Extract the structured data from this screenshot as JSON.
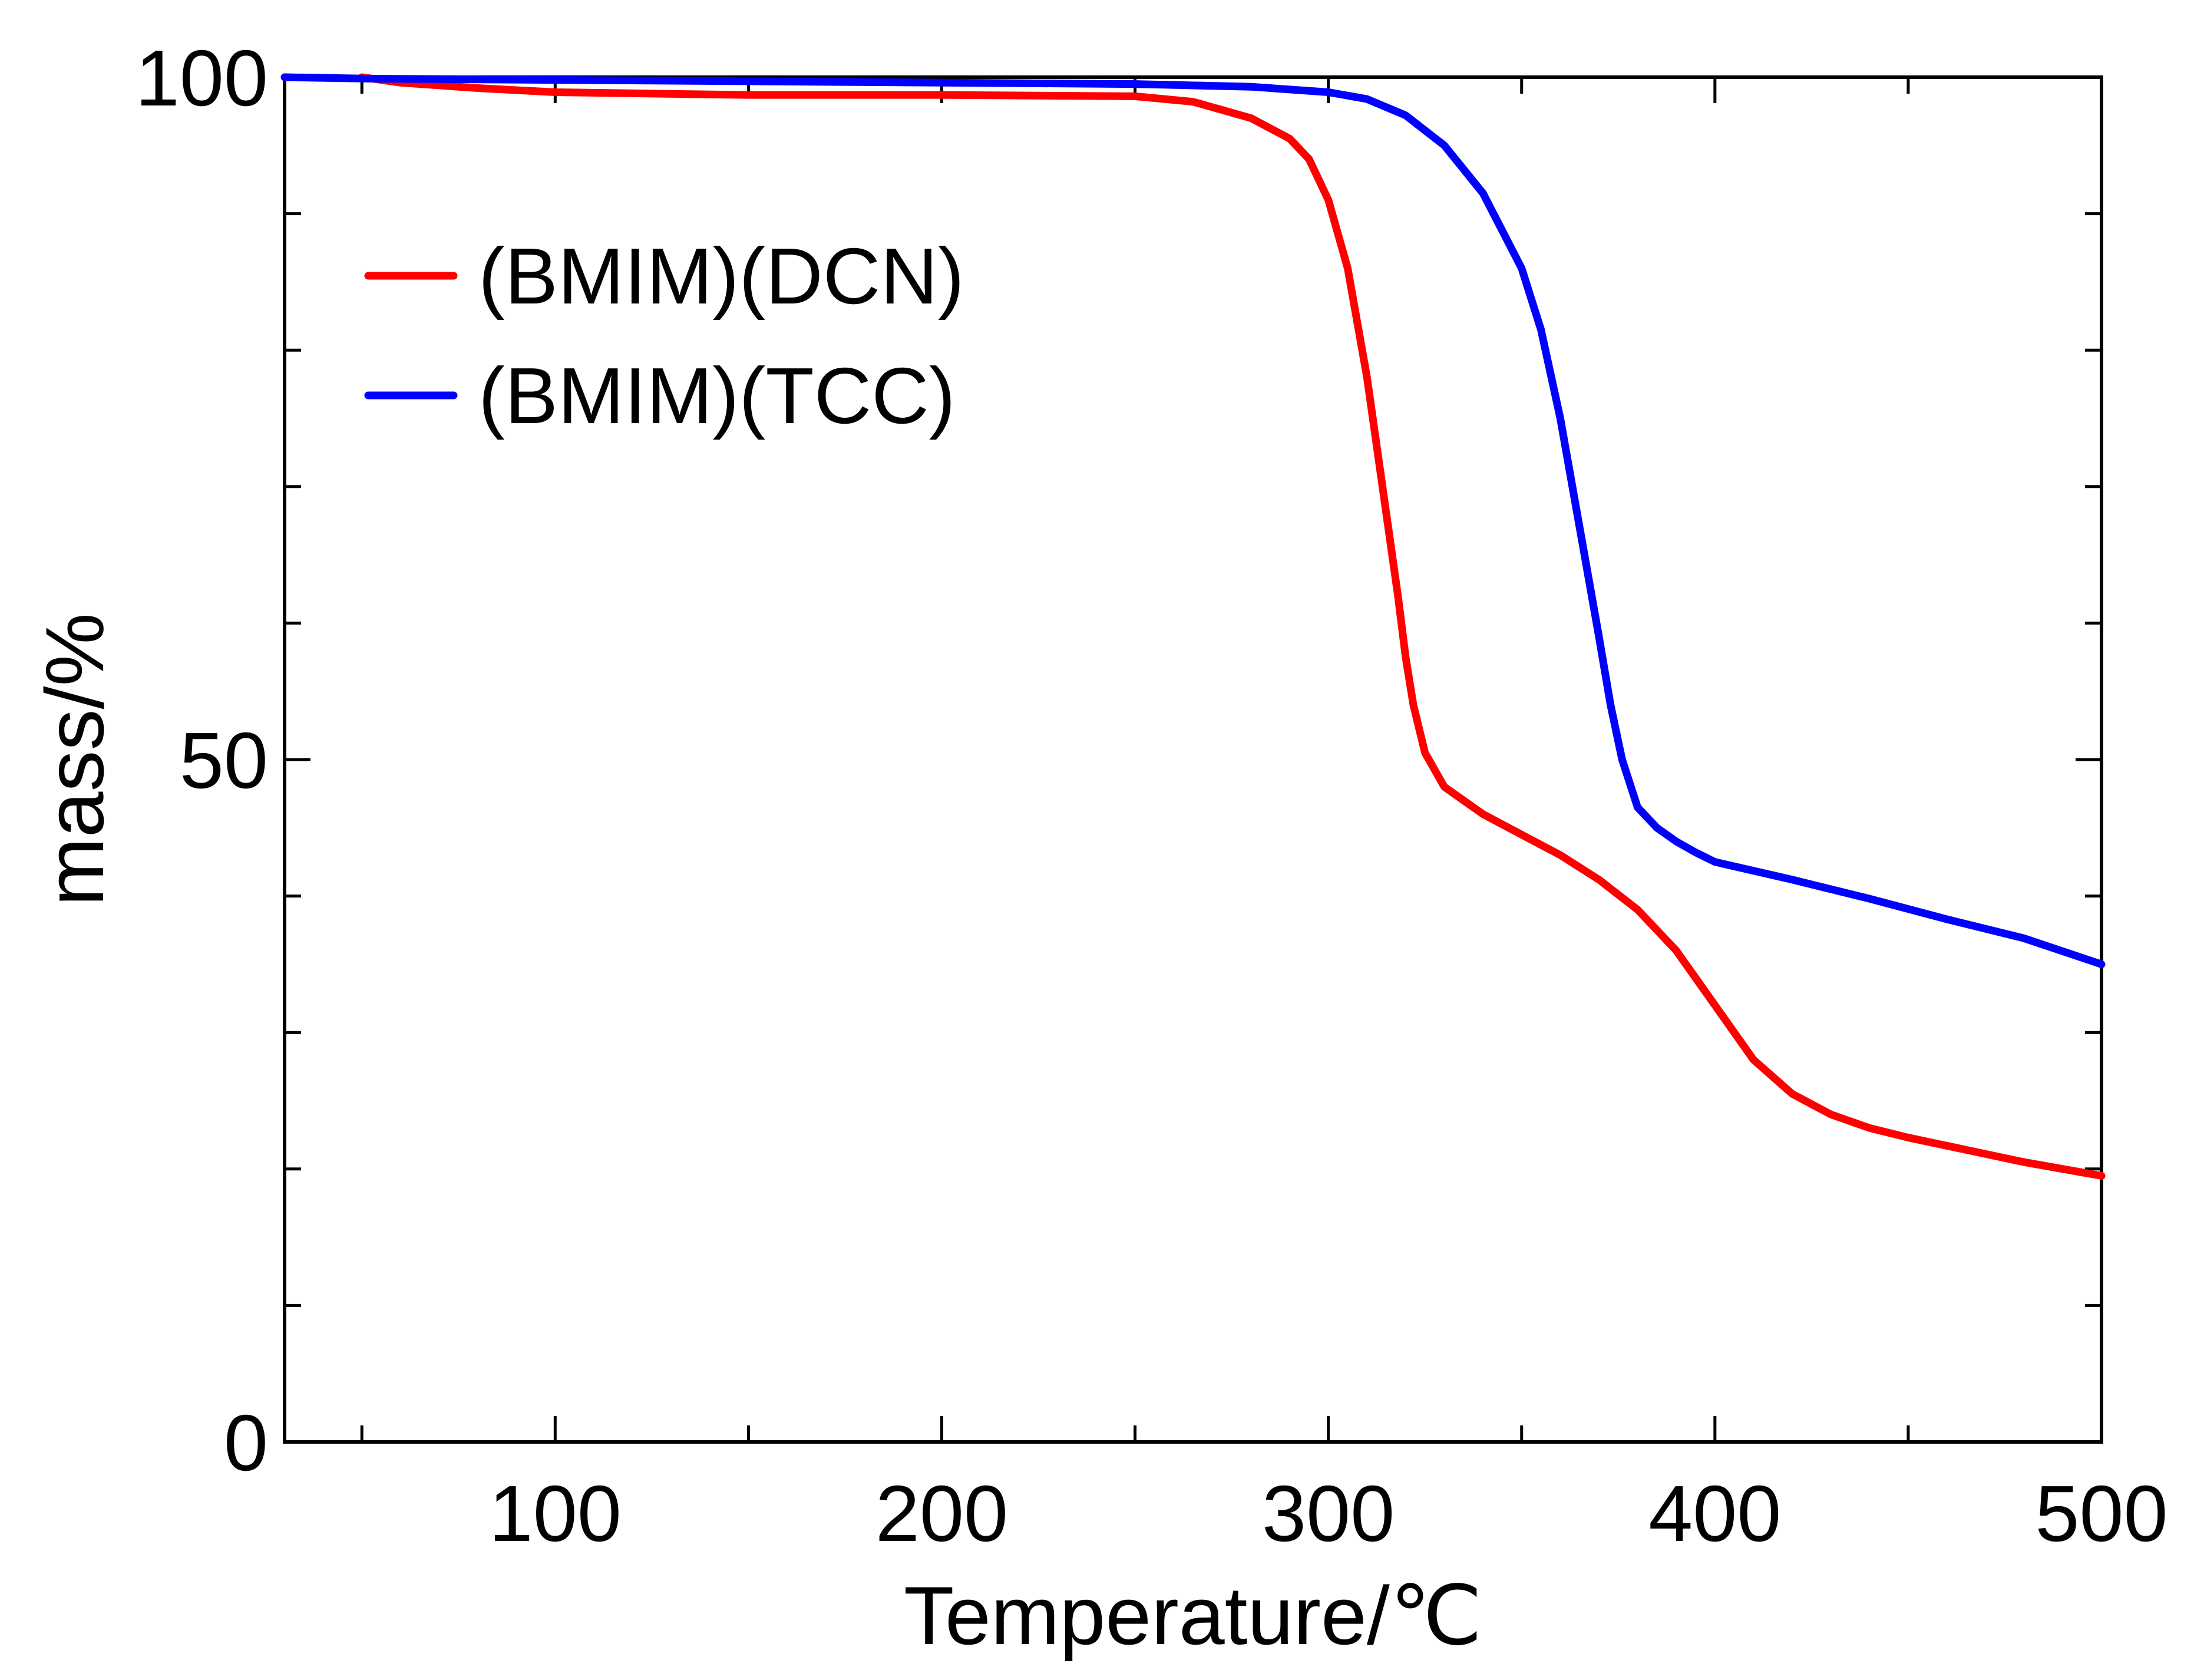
{
  "chart_data": {
    "type": "line",
    "title": "",
    "xlabel": "Temperature/℃",
    "ylabel": "mass/%",
    "xlim": [
      30,
      500
    ],
    "ylim": [
      0,
      100
    ],
    "x_ticks": [
      100,
      200,
      300,
      400,
      500
    ],
    "x_minor_ticks": [
      50,
      150,
      250,
      350,
      450
    ],
    "y_ticks": [
      0,
      50,
      100
    ],
    "y_minor_ticks": [
      10,
      20,
      30,
      40,
      60,
      70,
      80,
      90
    ],
    "grid": false,
    "legend_position": "top-left",
    "series": [
      {
        "name": "(BMIM)(DCN)",
        "color": "#ff0000",
        "x": [
          50,
          60,
          80,
          100,
          150,
          200,
          250,
          265,
          280,
          290,
          295,
          300,
          305,
          310,
          315,
          318,
          320,
          322,
          325,
          330,
          340,
          350,
          360,
          370,
          380,
          390,
          400,
          410,
          420,
          430,
          440,
          450,
          460,
          470,
          480,
          490,
          500
        ],
        "y": [
          100,
          99.6,
          99.2,
          98.9,
          98.7,
          98.7,
          98.6,
          98.2,
          97.0,
          95.5,
          94.0,
          91.0,
          86.0,
          78.0,
          68.0,
          62.0,
          57.5,
          54.0,
          50.5,
          48.0,
          46.0,
          44.5,
          43.0,
          41.2,
          39.0,
          36.0,
          32.0,
          28.0,
          25.5,
          24.0,
          23.0,
          22.3,
          21.7,
          21.1,
          20.5,
          20.0,
          19.5
        ]
      },
      {
        "name": "(BMIM)(TCC)",
        "color": "#0000ff",
        "x": [
          30,
          50,
          100,
          150,
          200,
          250,
          280,
          300,
          310,
          320,
          330,
          340,
          350,
          355,
          360,
          365,
          370,
          373,
          376,
          380,
          385,
          390,
          395,
          400,
          420,
          440,
          460,
          480,
          500
        ],
        "y": [
          100,
          99.9,
          99.8,
          99.7,
          99.6,
          99.5,
          99.3,
          98.9,
          98.4,
          97.2,
          95.0,
          91.5,
          86.0,
          81.5,
          75.0,
          67.0,
          59.0,
          54.0,
          50.0,
          46.5,
          45.0,
          44.0,
          43.2,
          42.5,
          41.2,
          39.8,
          38.3,
          36.9,
          35.0
        ]
      }
    ]
  }
}
